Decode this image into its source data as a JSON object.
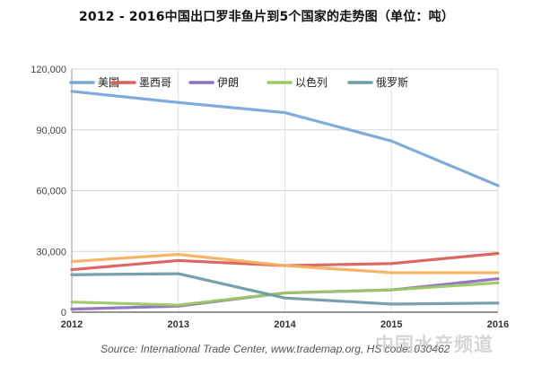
{
  "title": "2012 - 2016中国出口罗非鱼片到5个国家的走势图（单位：吨）",
  "source": "Source: International Trade Center, www.trademap.org, HS code: 030462",
  "watermark": "中国水产频道",
  "chart_data": {
    "type": "line",
    "title": "2012 - 2016中国出口罗非鱼片到5个国家的走势图（单位：吨）",
    "x": [
      "2012",
      "2013",
      "2014",
      "2015",
      "2016"
    ],
    "ylim": [
      0,
      120000
    ],
    "yticks": [
      0,
      30000,
      60000,
      90000,
      120000
    ],
    "ytick_labels": [
      "0",
      "30,000",
      "60,000",
      "90,000",
      "120,000"
    ],
    "grid": true,
    "legend_position": "top",
    "series": [
      {
        "name": "美国",
        "color": "#7aa6d8",
        "values": [
          109000,
          103500,
          98500,
          84500,
          62500
        ]
      },
      {
        "name": "墨西哥",
        "color": "#d9605a",
        "values": [
          21000,
          25500,
          23000,
          24000,
          29000
        ]
      },
      {
        "name": "伊朗",
        "color": "#8f6fc0",
        "values": [
          1500,
          3000,
          9500,
          11000,
          16500
        ]
      },
      {
        "name": "以色列",
        "color": "#9cc766",
        "values": [
          5000,
          3500,
          9500,
          11000,
          14500
        ]
      },
      {
        "name": "俄罗斯",
        "color": "#6f9ca8",
        "values": [
          18500,
          19000,
          7000,
          4000,
          4500
        ]
      },
      {
        "name": "",
        "color": "#f4b060",
        "values": [
          25000,
          28500,
          23000,
          19500,
          19500
        ]
      }
    ]
  }
}
